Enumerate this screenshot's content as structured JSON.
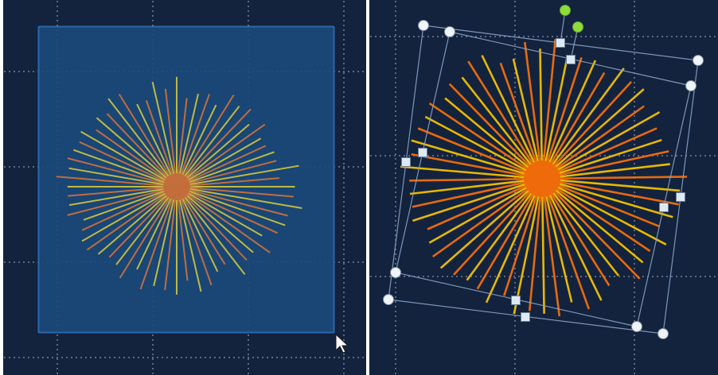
{
  "theme": {
    "canvas_background": "#13233d",
    "grid_dot_color": "#b9c4d6",
    "selection_fill": "#1a4a7a",
    "selection_border": "#2f6db5",
    "ray_color_yellow": "#c8c040",
    "ray_color_orange": "#c8703e",
    "center_blob_left": "#c46a3c",
    "right_ray_yellow": "#e8b800",
    "right_ray_orange": "#e96a0c",
    "center_blob_right": "#ee6a0a",
    "frame_line": "#8aa4c8",
    "handle_white": "#f1f4f8",
    "rotate_handle_green": "#8edb3c",
    "square_handle_fill": "#dfe9f5"
  },
  "left_panel": {
    "selection": {
      "state": "selected",
      "shape": "rectangle"
    },
    "starburst": {
      "ray_count": 64
    },
    "cursor": {
      "icon": "mouse-pointer-icon"
    }
  },
  "right_panel": {
    "starburst": {
      "ray_count": 60
    },
    "transform_frame": {
      "corner_handles": 6,
      "edge_handles": 6,
      "rotation_handles": 2,
      "state": "rotated"
    }
  }
}
